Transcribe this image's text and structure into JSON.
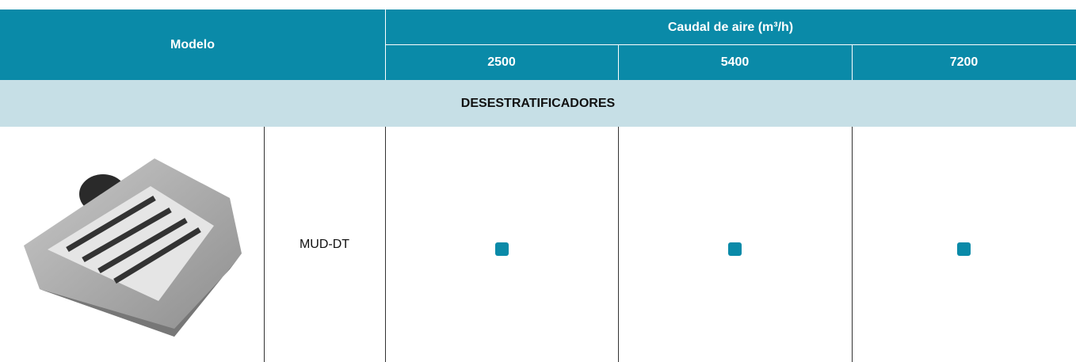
{
  "header": {
    "model_label": "Modelo",
    "airflow_label": "Caudal de aire (m³/h)",
    "columns": [
      2500,
      5400,
      7200
    ]
  },
  "section": "DESESTRATIFICADORES",
  "rows": [
    {
      "model": "MUD-DT",
      "available": [
        true,
        true,
        true
      ]
    }
  ]
}
